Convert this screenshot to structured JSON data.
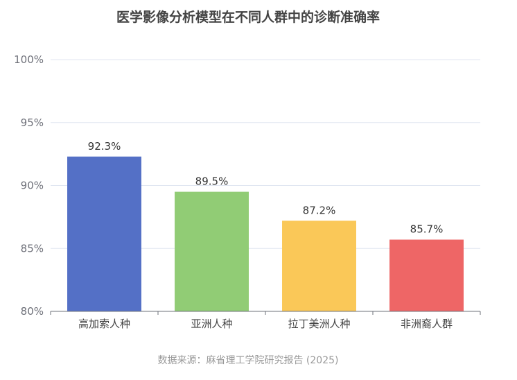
{
  "chart_data": {
    "type": "bar",
    "title": "医学影像分析模型在不同人群中的诊断准确率",
    "categories": [
      "高加索人种",
      "亚洲人种",
      "拉丁美洲人种",
      "非洲裔人群"
    ],
    "values": [
      92.3,
      89.5,
      87.2,
      85.7
    ],
    "value_labels": [
      "92.3%",
      "89.5%",
      "87.2%",
      "85.7%"
    ],
    "ylim": [
      80,
      100
    ],
    "yticks": [
      80,
      85,
      90,
      95,
      100
    ],
    "ytick_labels": [
      "80%",
      "85%",
      "90%",
      "95%",
      "100%"
    ],
    "xlabel": "",
    "ylabel": "",
    "grid": true,
    "legend": "none",
    "colors": [
      "#5470c6",
      "#91cc75",
      "#fac858",
      "#ee6666"
    ]
  },
  "footer": {
    "source": "数据来源：麻省理工学院研究报告 (2025)"
  }
}
